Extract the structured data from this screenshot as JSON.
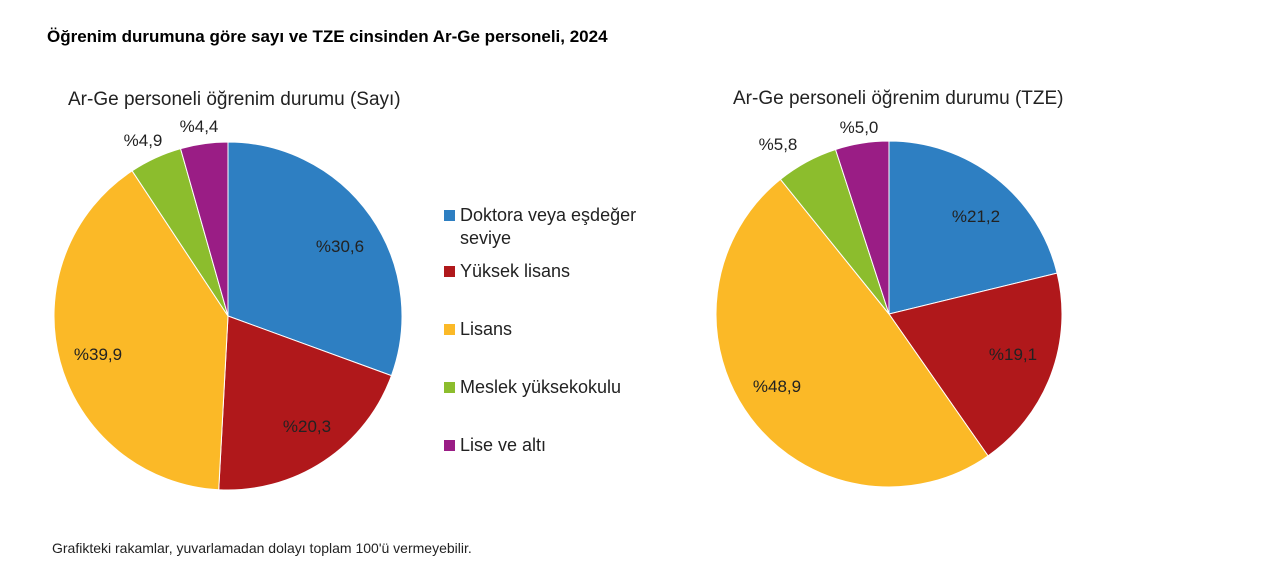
{
  "title": "Öğrenim durumuna göre sayı ve TZE cinsinden Ar-Ge personeli, 2024",
  "note": "Grafikteki rakamlar, yuvarlamadan dolayı toplam 100'ü vermeyebilir.",
  "chart_data": [
    {
      "type": "pie",
      "title": "Ar-Ge personeli öğrenim durumu (Sayı)",
      "categories": [
        "Doktora veya eşdeğer seviye",
        "Yüksek lisans",
        "Lisans",
        "Meslek yüksekokulu",
        "Lise ve altı"
      ],
      "values": [
        30.6,
        20.3,
        39.9,
        4.9,
        4.4
      ],
      "labels": [
        "%30,6",
        "%20,3",
        "%39,9",
        "%4,9",
        "%4,4"
      ]
    },
    {
      "type": "pie",
      "title": "Ar-Ge personeli öğrenim durumu (TZE)",
      "categories": [
        "Doktora veya eşdeğer seviye",
        "Yüksek lisans",
        "Lisans",
        "Meslek yüksekokulu",
        "Lise ve altı"
      ],
      "values": [
        21.2,
        19.1,
        48.9,
        5.8,
        5.0
      ],
      "labels": [
        "%21,2",
        "%19,1",
        "%48,9",
        "%5,8",
        "%5,0"
      ]
    }
  ],
  "legend": {
    "items": [
      {
        "label": "Doktora veya eşdeğer seviye",
        "color": "#2e7fc2"
      },
      {
        "label": "Yüksek lisans",
        "color": "#b0181b"
      },
      {
        "label": "Lisans",
        "color": "#fbb927"
      },
      {
        "label": "Meslek yüksekokulu",
        "color": "#8cbd2d"
      },
      {
        "label": "Lise ve altı",
        "color": "#9a1d85"
      }
    ]
  }
}
